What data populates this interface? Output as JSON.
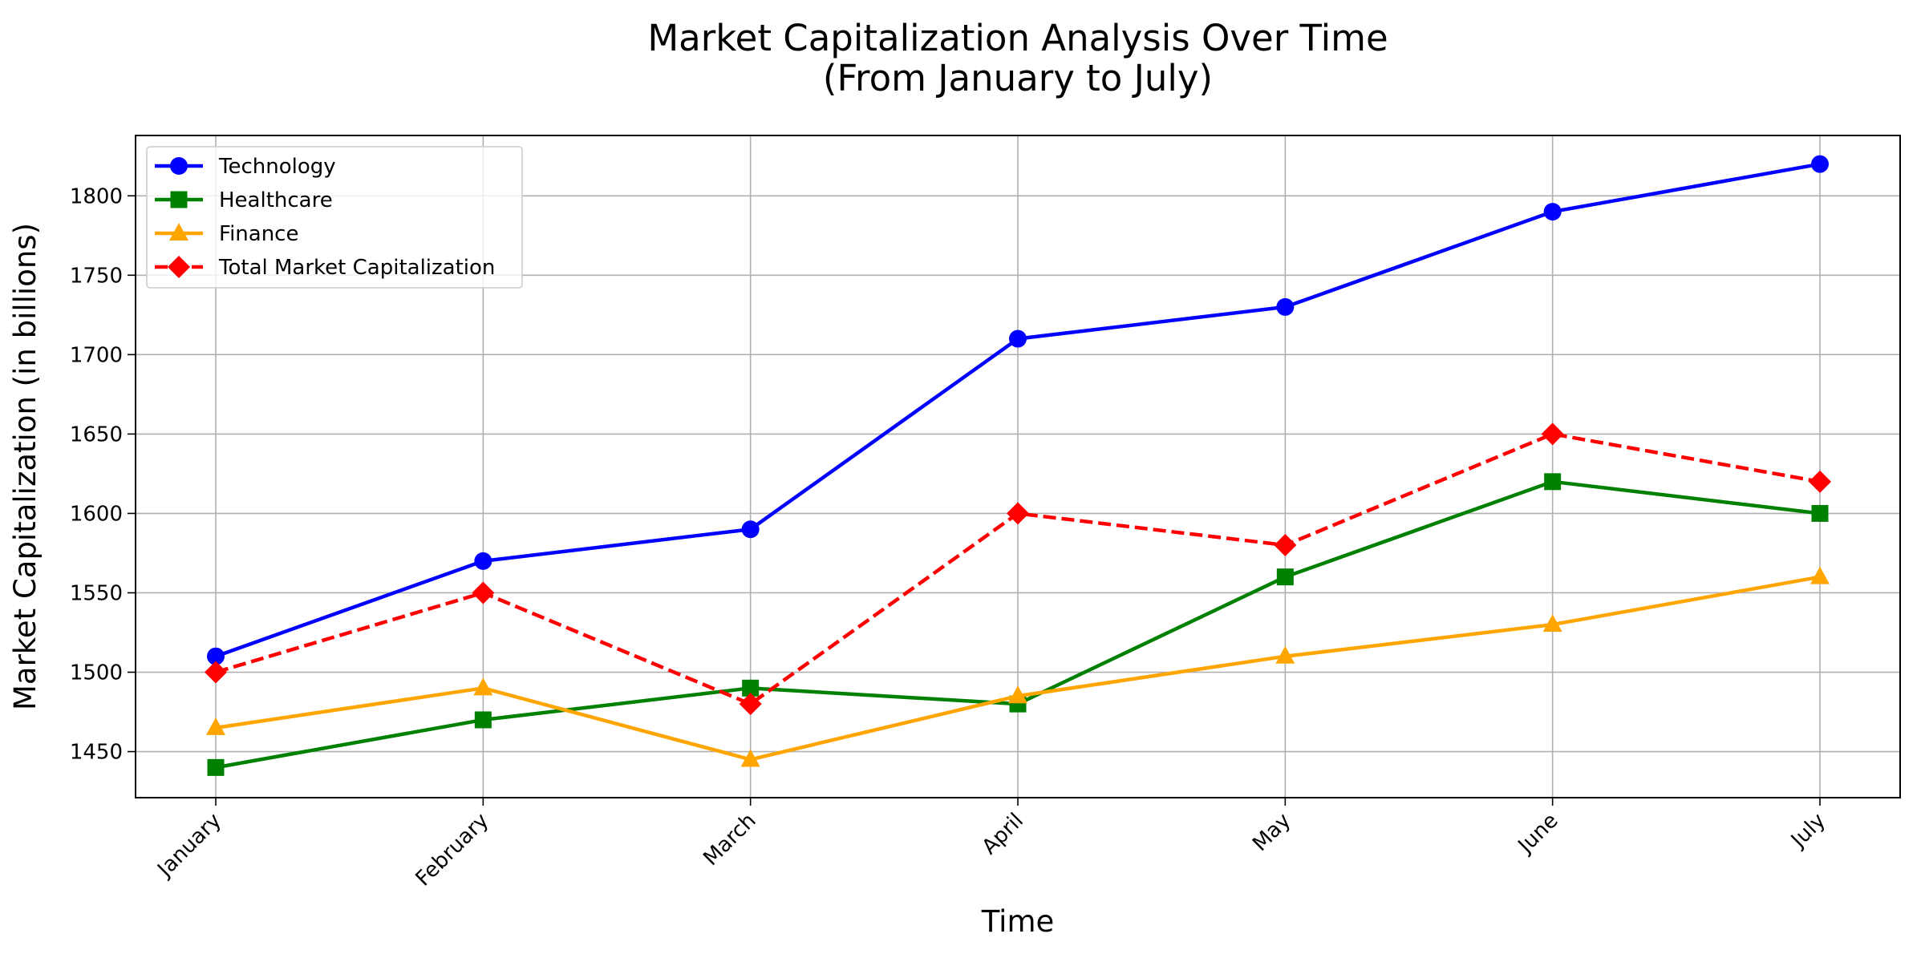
{
  "chart_data": {
    "type": "line",
    "title": "Market Capitalization Analysis Over Time",
    "subtitle": "(From January to July)",
    "xlabel": "Time",
    "ylabel": "Market Capitalization (in billions)",
    "categories": [
      "January",
      "February",
      "March",
      "April",
      "May",
      "June",
      "July"
    ],
    "ylim": [
      1421,
      1838
    ],
    "yticks": [
      1450,
      1500,
      1550,
      1600,
      1650,
      1700,
      1750,
      1800
    ],
    "grid": true,
    "legend_position": "upper-left",
    "series": [
      {
        "name": "Technology",
        "values": [
          1510,
          1570,
          1590,
          1710,
          1730,
          1790,
          1820
        ],
        "color": "#0000ff",
        "marker": "circle",
        "line_style": "solid"
      },
      {
        "name": "Healthcare",
        "values": [
          1440,
          1470,
          1490,
          1480,
          1560,
          1620,
          1600
        ],
        "color": "#008000",
        "marker": "square",
        "line_style": "solid"
      },
      {
        "name": "Finance",
        "values": [
          1465,
          1490,
          1445,
          1485,
          1510,
          1530,
          1560
        ],
        "color": "#ffa500",
        "marker": "triangle",
        "line_style": "solid"
      },
      {
        "name": "Total Market Capitalization",
        "values": [
          1500,
          1550,
          1480,
          1600,
          1580,
          1650,
          1620
        ],
        "color": "#ff0000",
        "marker": "diamond",
        "line_style": "dashed"
      }
    ]
  }
}
